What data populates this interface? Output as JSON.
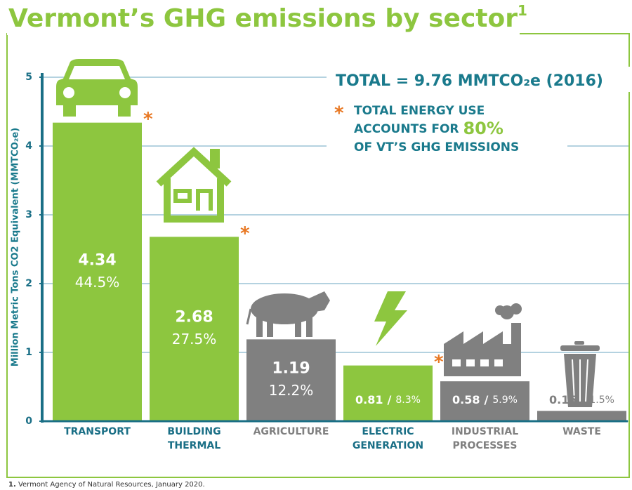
{
  "chart_data": {
    "type": "bar",
    "title": "Vermont’s GHG emissions by sector",
    "title_note": "1",
    "y_label": "Million Metric Tons CO2 Equivalent (MMTCO₂e)",
    "categories": [
      [
        "TRANSPORT"
      ],
      [
        "BUILDING",
        "THERMAL"
      ],
      [
        "AGRICULTURE"
      ],
      [
        "ELECTRIC",
        "GENERATION"
      ],
      [
        "INDUSTRIAL",
        "PROCESSES"
      ],
      [
        "WASTE"
      ]
    ],
    "values": [
      4.34,
      2.68,
      1.19,
      0.81,
      0.58,
      0.15
    ],
    "shares": {
      "values": [
        44.5,
        27.5,
        12.2,
        8.3,
        5.9,
        1.5
      ],
      "value_labels": [
        "44.5%",
        "27.5%",
        "12.2%",
        "8.3%",
        "5.9%",
        "1.5%"
      ]
    },
    "inline_separator": "/",
    "colors": [
      "#8dc63f",
      "#8dc63f",
      "#808080",
      "#8dc63f",
      "#808080",
      "#808080"
    ],
    "energy_sectors": [
      true,
      true,
      false,
      true,
      false,
      false
    ],
    "energy_marker": "*",
    "ylim": [
      0,
      5
    ],
    "yticks": [
      0,
      1,
      2,
      3,
      4,
      5
    ],
    "grid": true,
    "annotations": {
      "total": "TOTAL = 9.76 MMTCO₂e (2016)",
      "energy_note": [
        "TOTAL ENERGY USE",
        "ACCOUNTS FOR ",
        "80%",
        "OF VT’S GHG EMISSIONS"
      ]
    },
    "footnote": {
      "number": "1.",
      "text": " Vermont Agency of Natural Resources, January 2020."
    }
  }
}
